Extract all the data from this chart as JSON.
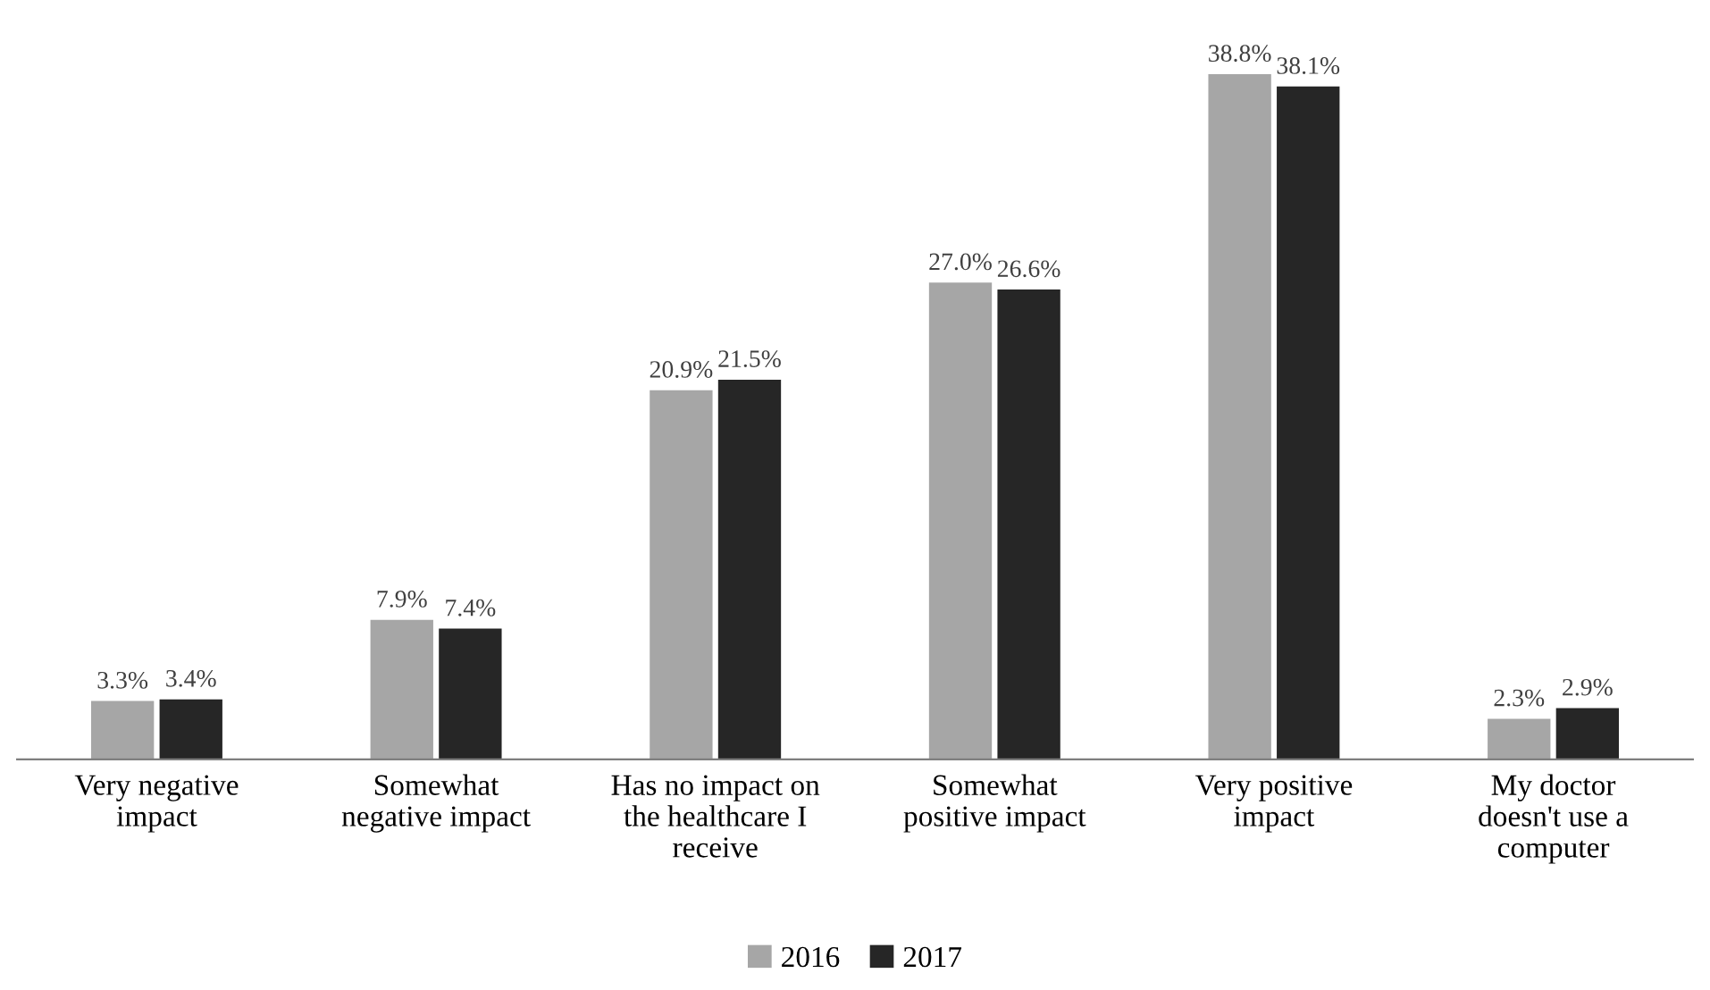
{
  "chart_data": {
    "type": "bar",
    "categories": [
      "Very negative\nimpact",
      "Somewhat\nnegative impact",
      "Has no impact on\nthe healthcare I\nreceive",
      "Somewhat\npositive impact",
      "Very positive\nimpact",
      "My doctor\ndoesn't use a\ncomputer"
    ],
    "series": [
      {
        "name": "2016",
        "color": "#a6a6a6",
        "values": [
          3.3,
          7.9,
          20.9,
          27.0,
          38.8,
          2.3
        ],
        "value_labels": [
          "3.3%",
          "7.9%",
          "20.9%",
          "27.0%",
          "38.8%",
          "2.3%"
        ]
      },
      {
        "name": "2017",
        "color": "#262626",
        "values": [
          3.4,
          7.4,
          21.5,
          26.6,
          38.1,
          2.9
        ],
        "value_labels": [
          "3.4%",
          "7.4%",
          "21.5%",
          "26.6%",
          "38.1%",
          "2.9%"
        ]
      }
    ],
    "legend": "bottom",
    "grid": false
  }
}
